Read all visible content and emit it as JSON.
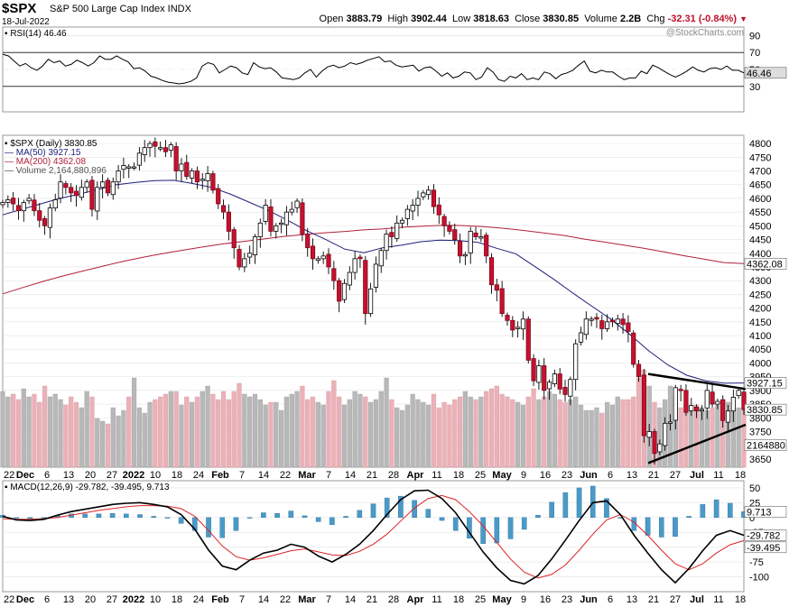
{
  "header": {
    "symbol": "$SPX",
    "description": "S&P 500 Large Cap Index INDX",
    "date": "18-Jul-2022",
    "open_label": "Open",
    "open": "3883.79",
    "high_label": "High",
    "high": "3902.44",
    "low_label": "Low",
    "low": "3818.63",
    "close_label": "Close",
    "close": "3830.85",
    "volume_label": "Volume",
    "volume": "2.2B",
    "chg_label": "Chg",
    "chg": "-32.31 (-0.84%)"
  },
  "watermark": "@StockCharts.com",
  "chart_data": [
    {
      "type": "line",
      "title": "RSI(14) 46.46",
      "ylim": [
        0,
        100
      ],
      "yticks": [
        30,
        50,
        70,
        90
      ],
      "value_label": "46.46",
      "series": [
        {
          "name": "RSI(14)",
          "values": [
            68,
            66,
            60,
            54,
            57,
            52,
            49,
            54,
            62,
            58,
            60,
            54,
            56,
            61,
            58,
            54,
            58,
            66,
            62,
            62,
            66,
            62,
            59,
            51,
            52,
            48,
            42,
            40,
            37,
            35,
            34,
            33,
            34,
            36,
            40,
            54,
            58,
            56,
            46,
            50,
            54,
            52,
            46,
            44,
            58,
            53,
            51,
            52,
            47,
            40,
            39,
            38,
            40,
            46,
            50,
            41,
            48,
            53,
            55,
            52,
            54,
            58,
            56,
            58,
            61,
            63,
            65,
            59,
            60,
            55,
            53,
            54,
            55,
            48,
            52,
            53,
            48,
            42,
            46,
            40,
            42,
            47,
            46,
            38,
            41,
            52,
            47,
            38,
            36,
            42,
            40,
            45,
            38,
            40,
            38,
            47,
            45,
            39,
            44,
            46,
            49,
            55,
            60,
            48,
            46,
            49,
            47,
            47,
            42,
            38,
            40,
            40,
            48,
            45,
            55,
            52,
            48,
            44,
            41,
            44,
            48,
            53,
            49,
            47,
            51,
            52,
            50,
            54,
            49,
            49,
            46
          ]
        }
      ]
    },
    {
      "type": "candlestick",
      "title": "$SPX (Daily) 3830.85",
      "ylim": [
        3620,
        4830
      ],
      "yticks": [
        3650,
        3700,
        3750,
        3800,
        3850,
        3900,
        3950,
        4000,
        4050,
        4100,
        4150,
        4200,
        4250,
        4300,
        4350,
        4400,
        4450,
        4500,
        4550,
        4600,
        4650,
        4700,
        4750,
        4800
      ],
      "xticks": [
        "22",
        "Dec",
        "6",
        "13",
        "20",
        "27",
        "2022",
        "10",
        "18",
        "24",
        "Feb",
        "7",
        "14",
        "22",
        "Mar",
        "7",
        "14",
        "21",
        "28",
        "Apr",
        "11",
        "18",
        "25",
        "May",
        "9",
        "16",
        "23",
        "Jun",
        "6",
        "13",
        "21",
        "27",
        "Jul",
        "11",
        "18"
      ],
      "close": [
        4585,
        4595,
        4580,
        4555,
        4585,
        4600,
        4555,
        4520,
        4500,
        4565,
        4595,
        4660,
        4640,
        4620,
        4610,
        4640,
        4660,
        4560,
        4640,
        4660,
        4620,
        4660,
        4700,
        4720,
        4715,
        4715,
        4765,
        4785,
        4800,
        4790,
        4785,
        4770,
        4795,
        4700,
        4725,
        4680,
        4700,
        4660,
        4670,
        4690,
        4630,
        4580,
        4550,
        4480,
        4420,
        4350,
        4380,
        4400,
        4460,
        4510,
        4575,
        4480,
        4500,
        4510,
        4550,
        4560,
        4590,
        4470,
        4420,
        4380,
        4380,
        4390,
        4350,
        4300,
        4225,
        4290,
        4330,
        4380,
        4380,
        4180,
        4270,
        4360,
        4410,
        4470,
        4460,
        4510,
        4520,
        4560,
        4575,
        4600,
        4620,
        4630,
        4570,
        4540,
        4500,
        4480,
        4450,
        4390,
        4395,
        4480,
        4460,
        4460,
        4390,
        4285,
        4265,
        4180,
        4155,
        4120,
        4130,
        4160,
        4010,
        3935,
        3990,
        3900,
        3930,
        3960,
        3905,
        3885,
        3940,
        4070,
        4110,
        4160,
        4160,
        4160,
        4125,
        4150,
        4150,
        4160,
        4140,
        4115,
        3995,
        3950,
        3735,
        3750,
        3670,
        3705,
        3780,
        3785,
        3910,
        3900,
        3820,
        3845,
        3825,
        3830,
        3900,
        3850,
        3860,
        3790,
        3825,
        3875,
        3900,
        3830
      ],
      "series": [
        {
          "name": "MA(50)",
          "last": "3927.15",
          "values": [
            4540,
            4560,
            4580,
            4600,
            4615,
            4632,
            4650,
            4658,
            4665,
            4666,
            4654,
            4640,
            4615,
            4585,
            4555,
            4520,
            4482,
            4450,
            4415,
            4402,
            4420,
            4430,
            4442,
            4448,
            4446,
            4440,
            4418,
            4398,
            4352,
            4305,
            4255,
            4207,
            4160,
            4104,
            4044,
            3993,
            3955,
            3935,
            3926,
            3927
          ]
        },
        {
          "name": "MA(200)",
          "last": "4362.08",
          "values": [
            4252,
            4275,
            4297,
            4317,
            4335,
            4353,
            4370,
            4385,
            4399,
            4411,
            4423,
            4434,
            4443,
            4452,
            4461,
            4468,
            4474,
            4479,
            4485,
            4489,
            4495,
            4499,
            4502,
            4501,
            4497,
            4491,
            4483,
            4474,
            4465,
            4452,
            4441,
            4430,
            4418,
            4405,
            4391,
            4379,
            4366,
            4362
          ]
        },
        {
          "name": "Volume",
          "last": "2,164,880,896"
        }
      ],
      "volume": [
        2.8,
        2.6,
        2.7,
        2.5,
        2.9,
        2.6,
        2.7,
        2.4,
        3.0,
        2.6,
        2.7,
        2.5,
        2.3,
        2.6,
        2.4,
        2.2,
        2.8,
        2.6,
        1.8,
        1.7,
        1.6,
        2.2,
        1.9,
        2.1,
        2.6,
        3.3,
        2.2,
        2.0,
        2.4,
        2.5,
        2.6,
        2.7,
        2.8,
        2.8,
        2.3,
        2.6,
        2.4,
        2.6,
        2.8,
        3.0,
        2.7,
        2.5,
        2.8,
        2.5,
        2.8,
        3.1,
        2.7,
        2.6,
        2.7,
        2.5,
        2.3,
        2.4,
        2.4,
        2.1,
        2.6,
        2.7,
        2.8,
        3.0,
        2.5,
        2.6,
        2.4,
        2.3,
        2.8,
        3.2,
        2.6,
        2.3,
        2.5,
        2.8,
        2.7,
        2.6,
        2.4,
        2.5,
        2.8,
        3.3,
        2.5,
        2.2,
        2.1,
        2.3,
        2.7,
        2.5,
        2.4,
        2.3,
        2.7,
        2.2,
        2.4,
        2.3,
        2.5,
        2.6,
        2.8,
        2.6,
        2.5,
        2.6,
        2.8,
        2.9,
        3.0,
        2.7,
        2.6,
        2.5,
        2.4,
        2.3,
        2.6,
        2.9,
        2.5,
        2.6,
        2.8,
        2.7,
        2.5,
        2.4,
        2.5,
        2.6,
        2.3,
        2.1,
        2.1,
        2.2,
        2.0,
        2.4,
        2.3,
        2.6,
        2.5,
        2.5,
        2.6,
        3.3,
        3.6,
        3.0,
        2.4,
        2.2,
        2.5,
        3.0,
        2.6,
        2.2,
        2.3,
        2.1,
        2.3,
        2.2,
        2.1,
        2.2,
        2.3,
        2.5,
        2.4,
        2.2,
        2.2,
        2.16
      ],
      "annotations": [
        "resistance trendline",
        "support trendline"
      ]
    },
    {
      "type": "line",
      "title": "MACD(12,26,9) -29.782, -39.495, 9.713",
      "ylim": [
        -125,
        62
      ],
      "yticks": [
        50,
        25,
        0,
        -25,
        -50,
        -75,
        -100
      ],
      "value_labels": [
        "9.713",
        "-29.782",
        "-39.495"
      ],
      "xticks": [
        "22",
        "Dec",
        "6",
        "13",
        "20",
        "27",
        "2022",
        "10",
        "18",
        "24",
        "Feb",
        "7",
        "14",
        "22",
        "Mar",
        "7",
        "14",
        "21",
        "28",
        "Apr",
        "11",
        "18",
        "25",
        "May",
        "9",
        "16",
        "23",
        "Jun",
        "6",
        "13",
        "21",
        "27",
        "Jul",
        "11",
        "18"
      ],
      "series": [
        {
          "name": "MACD",
          "values": [
            2,
            -4,
            -5,
            -3,
            4,
            10,
            14,
            18,
            22,
            24,
            25,
            22,
            18,
            5,
            -20,
            -55,
            -82,
            -88,
            -72,
            -60,
            -55,
            -45,
            -50,
            -65,
            -75,
            -62,
            -45,
            -22,
            5,
            30,
            45,
            46,
            32,
            8,
            -25,
            -58,
            -85,
            -106,
            -112,
            -98,
            -70,
            -38,
            -5,
            25,
            28,
            5,
            -30,
            -60,
            -88,
            -110,
            -86,
            -56,
            -30,
            -22,
            -30
          ]
        },
        {
          "name": "Signal",
          "values": [
            -2,
            -3,
            -3,
            -2,
            0,
            4,
            8,
            12,
            15,
            18,
            20,
            20,
            19,
            15,
            2,
            -22,
            -48,
            -66,
            -72,
            -68,
            -62,
            -56,
            -53,
            -58,
            -63,
            -64,
            -57,
            -45,
            -28,
            -6,
            16,
            32,
            37,
            30,
            10,
            -14,
            -42,
            -70,
            -92,
            -102,
            -96,
            -80,
            -55,
            -28,
            -4,
            5,
            -8,
            -30,
            -55,
            -78,
            -88,
            -78,
            -60,
            -46,
            -39
          ]
        },
        {
          "name": "Histogram",
          "values": [
            4,
            -1,
            -2,
            -1,
            4,
            6,
            6,
            6,
            7,
            6,
            5,
            2,
            -1,
            -10,
            -22,
            -33,
            -34,
            -22,
            0,
            8,
            7,
            11,
            3,
            -7,
            -12,
            2,
            12,
            23,
            33,
            36,
            29,
            14,
            -5,
            -22,
            -35,
            -44,
            -43,
            -36,
            -20,
            4,
            26,
            42,
            50,
            53,
            32,
            0,
            -22,
            -30,
            -33,
            -32,
            2,
            22,
            30,
            24,
            9.7
          ]
        }
      ]
    }
  ]
}
